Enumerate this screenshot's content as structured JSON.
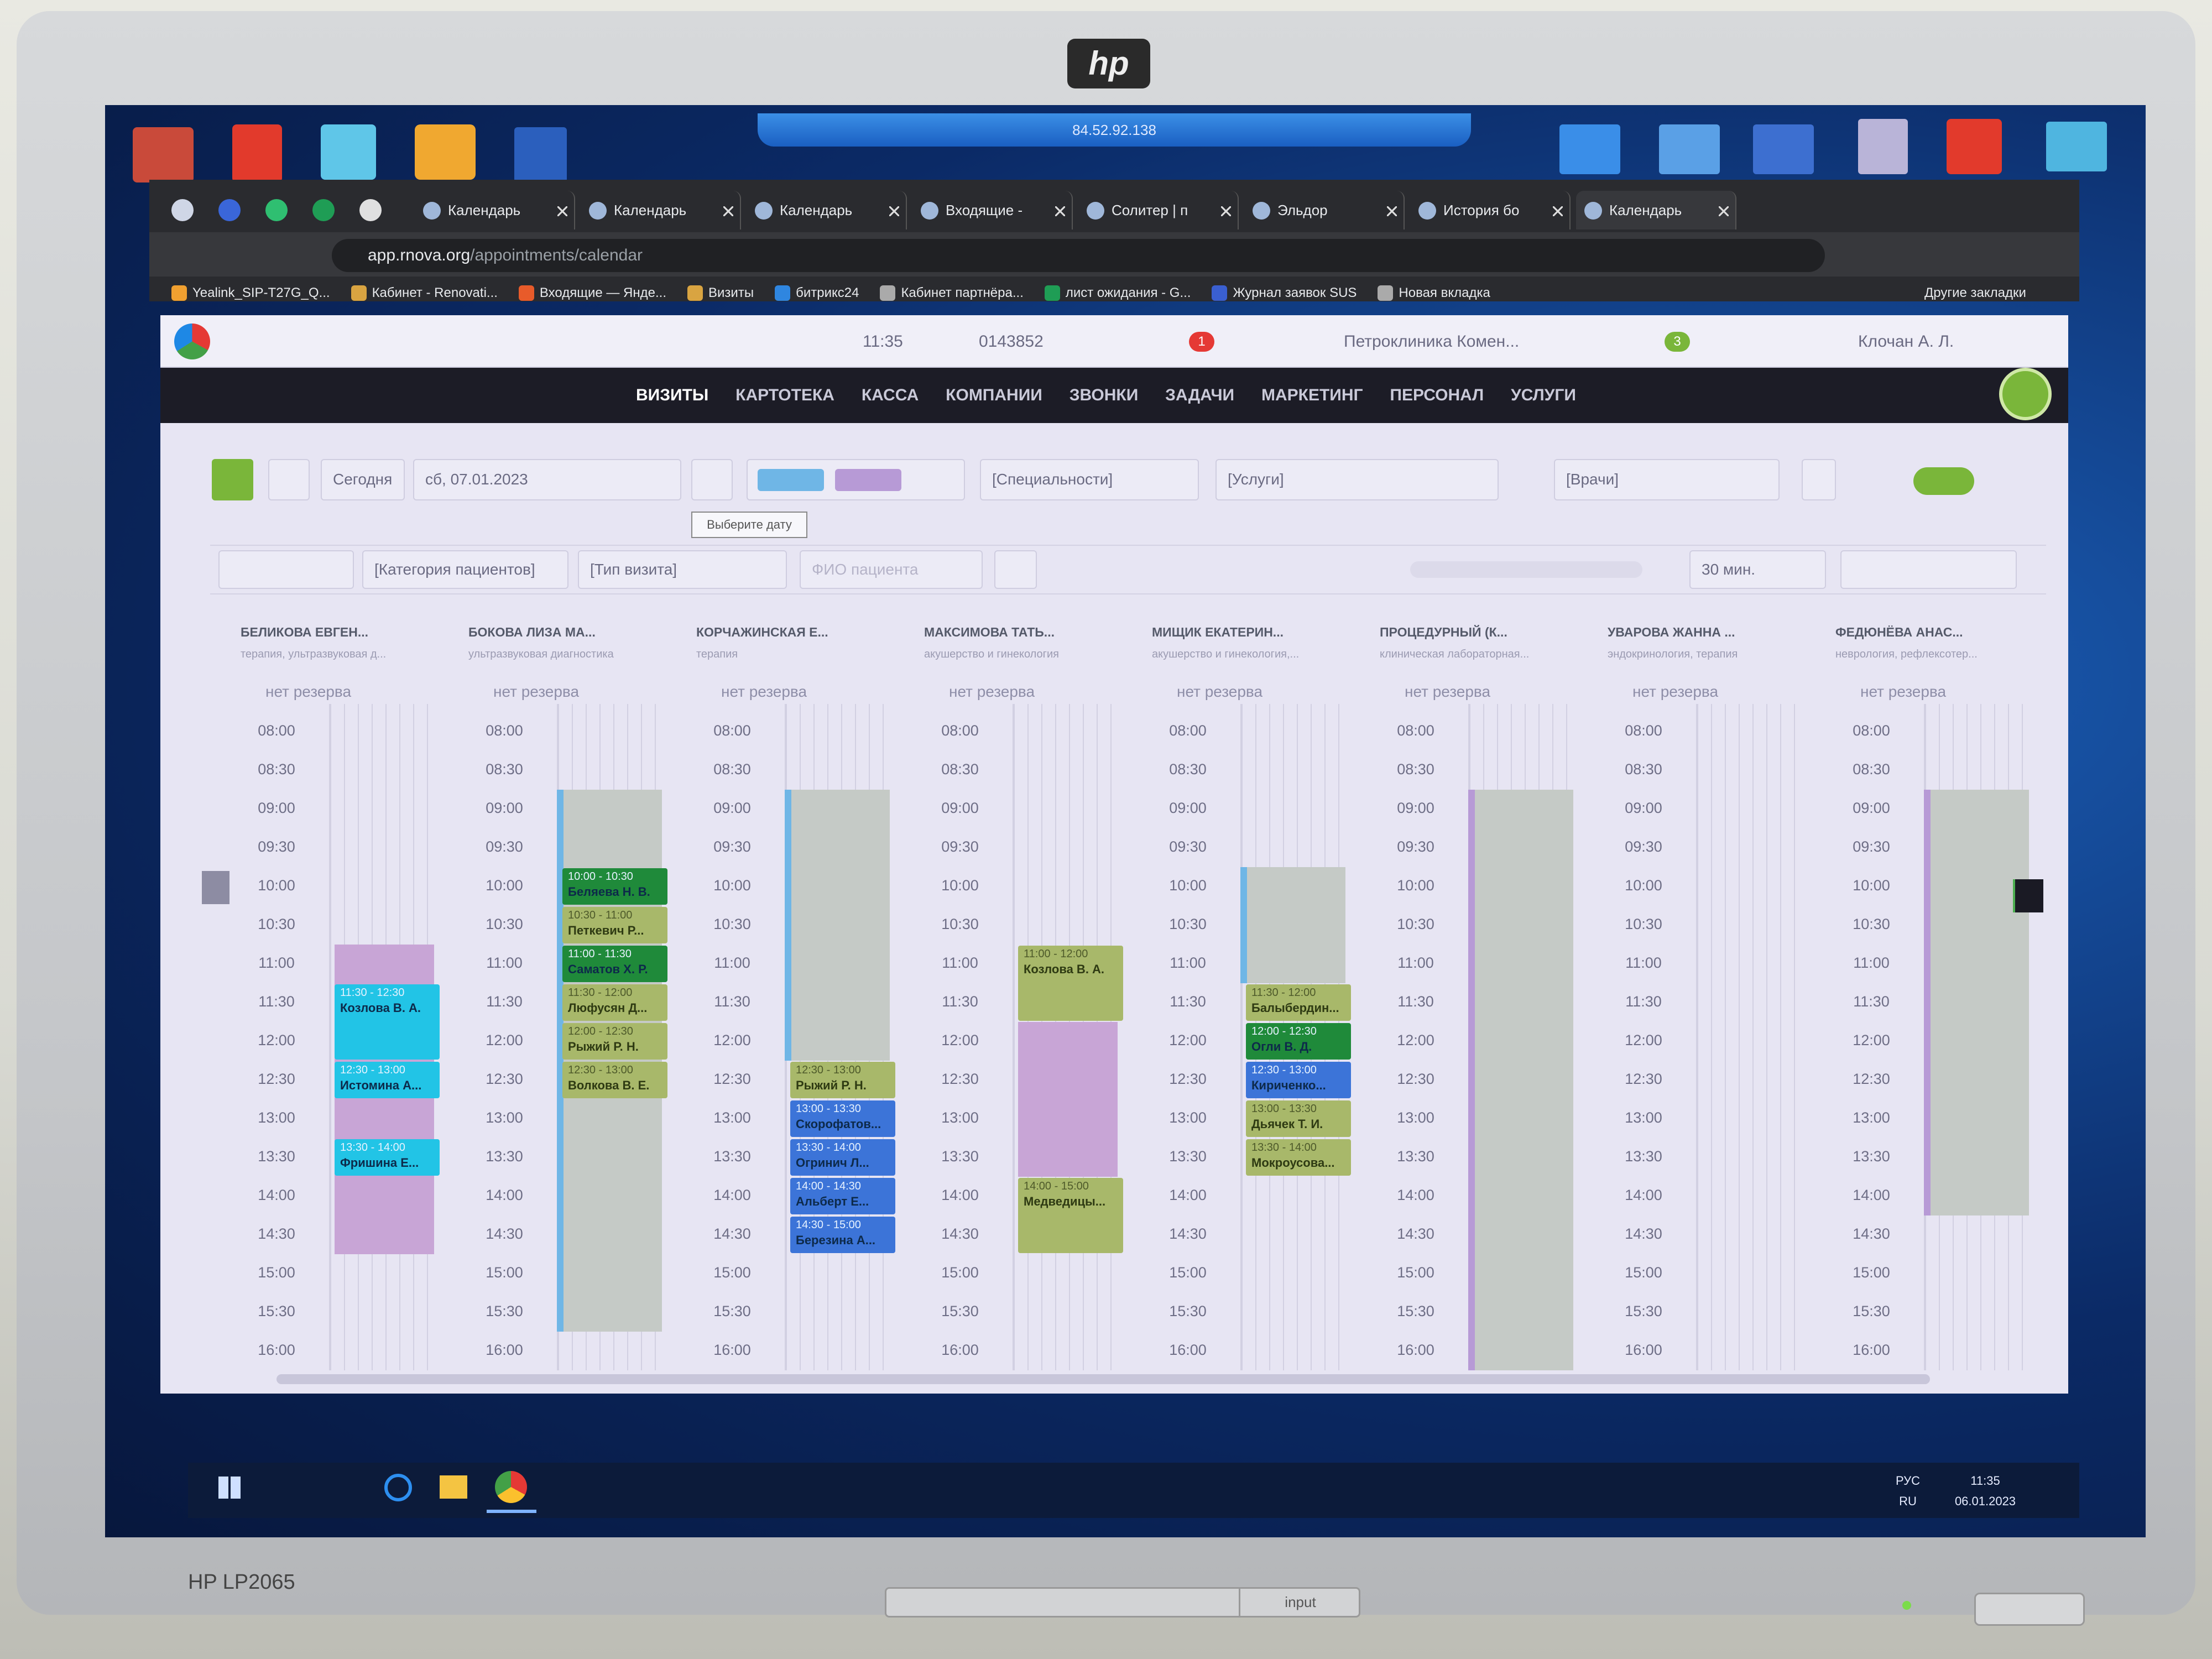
{
  "monitor": {
    "brand": "hp",
    "model": "HP LP2065",
    "button_label": "input"
  },
  "remote_bar": "84.52.92.138",
  "browser": {
    "tabs": [
      "Календарь",
      "Календарь",
      "Календарь",
      "Входящие -",
      "Солитер | п",
      "Эльдор",
      "История бо",
      "Календарь"
    ],
    "address_host": "app.rnova.org",
    "address_path": "/appointments/calendar",
    "bookmarks": [
      "Yealink_SIP-T27G_Q...",
      "Кабинет - Renovati...",
      "Входящие — Янде...",
      "Визиты",
      "битрикс24",
      "Кабинет партнёра...",
      "лист ожидания - G...",
      "Журнал заявок SUS",
      "Новая вкладка"
    ],
    "other_bookmarks": "Другие закладки"
  },
  "app_header": {
    "time": "11:35",
    "phone": "0143852",
    "notifications": "1",
    "tasks": "3",
    "clinic": "Петроклиника Комен...",
    "user": "Клочан А. Л."
  },
  "nav": [
    "ВИЗИТЫ",
    "КАРТОТЕКА",
    "КАССА",
    "КОМПАНИИ",
    "ЗВОНКИ",
    "ЗАДАЧИ",
    "МАРКЕТИНГ",
    "ПЕРСОНАЛ",
    "УСЛУГИ"
  ],
  "toolbar": {
    "today": "Сегодня",
    "date": "сб, 07.01.2023",
    "tooltip": "Выберите дату",
    "specialties": "[Специальности]",
    "services": "[Услуги]",
    "doctors": "[Врачи]",
    "patient_category": "[Категория пациентов]",
    "visit_type": "[Тип визита]",
    "patient_name": "ФИО пациента",
    "interval": "30 мин."
  },
  "calendar": {
    "reserve_label": "нет резерва",
    "times": [
      "08:00",
      "08:30",
      "09:00",
      "09:30",
      "10:00",
      "10:30",
      "11:00",
      "11:30",
      "12:00",
      "12:30",
      "13:00",
      "13:30",
      "14:00",
      "14:30",
      "15:00",
      "15:30",
      "16:00"
    ],
    "columns": [
      {
        "name": "БЕЛИКОВА ЕВГЕН...",
        "spec": "терапия, ультразвуковая д...",
        "appointments": [
          {
            "time": "11:30 - 12:30",
            "patient": "Козлова В. А.",
            "color": "#22c4e6"
          },
          {
            "time": "12:30 - 13:00",
            "patient": "Истомина А...",
            "color": "#22c4e6"
          },
          {
            "time": "13:30 - 14:00",
            "patient": "Фришина Е...",
            "color": "#22c4e6"
          }
        ]
      },
      {
        "name": "БОКОВА ЛИЗА МА...",
        "spec": "ультразвуковая диагностика",
        "appointments": [
          {
            "time": "10:00 - 10:30",
            "patient": "Беляева Н. В.",
            "color": "#1f8a3a"
          },
          {
            "time": "10:30 - 11:00",
            "patient": "Петкевич Р...",
            "color": "#a8b86a"
          },
          {
            "time": "11:00 - 11:30",
            "patient": "Саматов Х. Р.",
            "color": "#1f8a3a"
          },
          {
            "time": "11:30 - 12:00",
            "patient": "Люфусян Д...",
            "color": "#a8b86a"
          },
          {
            "time": "12:00 - 12:30",
            "patient": "Рыжий Р. Н.",
            "color": "#a8b86a"
          },
          {
            "time": "12:30 - 13:00",
            "patient": "Волкова В. Е.",
            "color": "#a8b86a"
          }
        ]
      },
      {
        "name": "КОРЧАЖИНСКАЯ Е...",
        "spec": "терапия",
        "appointments": [
          {
            "time": "12:30 - 13:00",
            "patient": "Рыжий Р. Н.",
            "color": "#a8b86a"
          },
          {
            "time": "13:00 - 13:30",
            "patient": "Скорофатов...",
            "color": "#3c74d8"
          },
          {
            "time": "13:30 - 14:00",
            "patient": "Огринич Л...",
            "color": "#3c74d8"
          },
          {
            "time": "14:00 - 14:30",
            "patient": "Альберт Е...",
            "color": "#3c74d8"
          },
          {
            "time": "14:30 - 15:00",
            "patient": "Березина А...",
            "color": "#3c74d8"
          }
        ]
      },
      {
        "name": "МАКСИМОВА ТАТЬ...",
        "spec": "акушерство и гинекология",
        "appointments": [
          {
            "time": "11:00 - 12:00",
            "patient": "Козлова В. А.",
            "color": "#a8b86a"
          },
          {
            "time": "14:00 - 15:00",
            "patient": "Медведицы...",
            "color": "#a8b86a"
          }
        ]
      },
      {
        "name": "МИЩИК ЕКАТЕРИН...",
        "spec": "акушерство и гинекология,...",
        "appointments": [
          {
            "time": "11:30 - 12:00",
            "patient": "Балыбердин...",
            "color": "#a8b86a"
          },
          {
            "time": "12:00 - 12:30",
            "patient": "Огли В. Д.",
            "color": "#1f8a3a"
          },
          {
            "time": "12:30 - 13:00",
            "patient": "Кириченко...",
            "color": "#3c74d8"
          },
          {
            "time": "13:00 - 13:30",
            "patient": "Дьячек Т. И.",
            "color": "#a8b86a"
          },
          {
            "time": "13:30 - 14:00",
            "patient": "Мокроусова...",
            "color": "#a8b86a"
          }
        ]
      },
      {
        "name": "ПРОЦЕДУРНЫЙ (К...",
        "spec": "клиническая лабораторная...",
        "appointments": []
      },
      {
        "name": "УВАРОВА ЖАННА ...",
        "spec": "эндокринология, терапия",
        "appointments": []
      },
      {
        "name": "ФЕДЮНЁВА АНАС...",
        "spec": "неврология, рефлексотер...",
        "appointments": []
      }
    ]
  },
  "taskbar": {
    "lang": "РУС",
    "region": "RU",
    "time": "11:35",
    "date": "06.01.2023"
  }
}
